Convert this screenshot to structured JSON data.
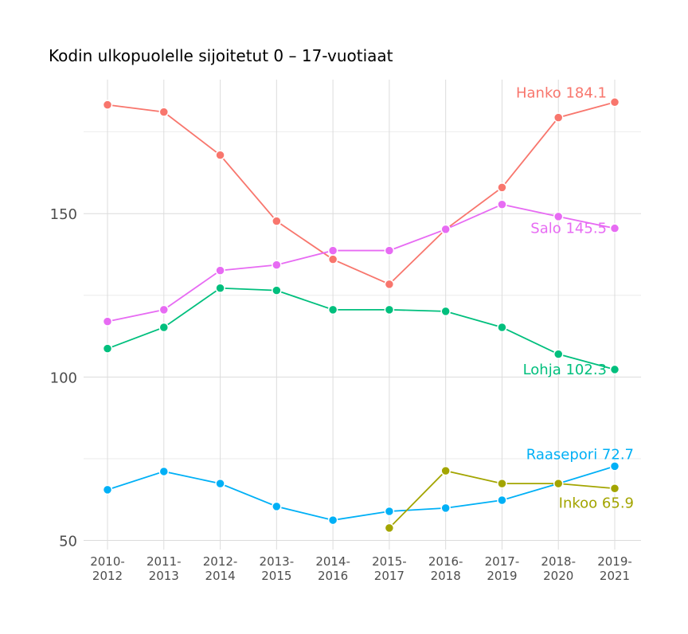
{
  "chart_data": {
    "type": "line",
    "title": "Kodin ulkopuolelle sijoitetut 0 – 17-vuotiaat",
    "xlabel": "",
    "ylabel": "",
    "categories": [
      "2010-\n2012",
      "2011-\n2013",
      "2012-\n2014",
      "2013-\n2015",
      "2014-\n2016",
      "2015-\n2017",
      "2016-\n2018",
      "2017-\n2019",
      "2018-\n2020",
      "2019-\n2021"
    ],
    "ylim": [
      47.2,
      191
    ],
    "yticks": [
      50,
      100,
      150
    ],
    "grid": true,
    "legend": "none",
    "series": [
      {
        "name": "Hanko",
        "color": "#F8766D",
        "label": "Hanko 184.1",
        "values": [
          183.3,
          181.1,
          167.9,
          147.7,
          136.0,
          128.4,
          145.2,
          158.0,
          179.4,
          184.1
        ]
      },
      {
        "name": "Salo",
        "color": "#E76BF3",
        "label": "Salo 145.5",
        "values": [
          117.0,
          120.6,
          132.6,
          134.3,
          138.7,
          138.7,
          145.2,
          152.8,
          149.1,
          145.5
        ]
      },
      {
        "name": "Lohja",
        "color": "#00BF7D",
        "label": "Lohja 102.3",
        "values": [
          108.7,
          115.2,
          127.2,
          126.5,
          120.6,
          120.6,
          120.1,
          115.2,
          107.0,
          102.3
        ]
      },
      {
        "name": "Raasepori",
        "color": "#00B0F6",
        "label": "Raasepori 72.7",
        "values": [
          65.5,
          71.1,
          67.4,
          60.4,
          56.2,
          58.9,
          59.9,
          62.3,
          67.4,
          72.7
        ]
      },
      {
        "name": "Inkoo",
        "color": "#A3A500",
        "label": "Inkoo 65.9",
        "values": [
          null,
          null,
          null,
          null,
          null,
          53.8,
          71.3,
          67.4,
          67.4,
          65.9
        ]
      }
    ]
  }
}
